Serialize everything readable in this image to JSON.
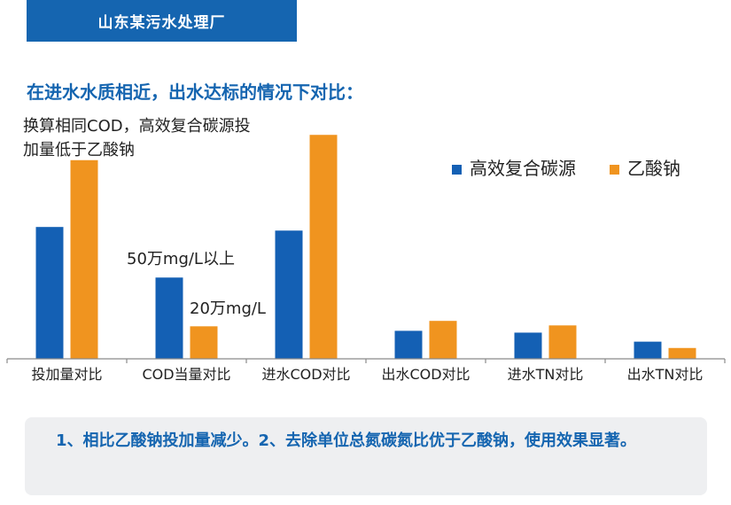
{
  "header": {
    "title": "山东某污水处理厂"
  },
  "subtitle": "在进水水质相近，出水达标的情况下对比：",
  "colors": {
    "brand": "#1565b0",
    "series_a": "#1460b4",
    "series_b": "#f0941f",
    "note_bg": "#eeeff1"
  },
  "chart_data": {
    "type": "bar",
    "categories": [
      "投加量对比",
      "COD当量对比",
      "进水COD对比",
      "出水COD对比",
      "进水TN对比",
      "出水TN对比"
    ],
    "series": [
      {
        "name": "高效复合碳源",
        "values": [
          146,
          90,
          142,
          31,
          29,
          19
        ]
      },
      {
        "name": "乙酸钠",
        "values": [
          220,
          36,
          248,
          42,
          37,
          12
        ]
      }
    ],
    "ylim": [
      0,
      260
    ],
    "legend_position": "top-right",
    "grid": false,
    "annotations": [
      "换算相同COD，高效复合碳源投",
      "加量低于乙酸钠",
      "50万mg/L以上",
      "20万mg/L"
    ]
  },
  "note": {
    "text": "1、相比乙酸钠投加量减少。2、去除单位总氮碳氮比优于乙酸钠，使用效果显著。"
  }
}
